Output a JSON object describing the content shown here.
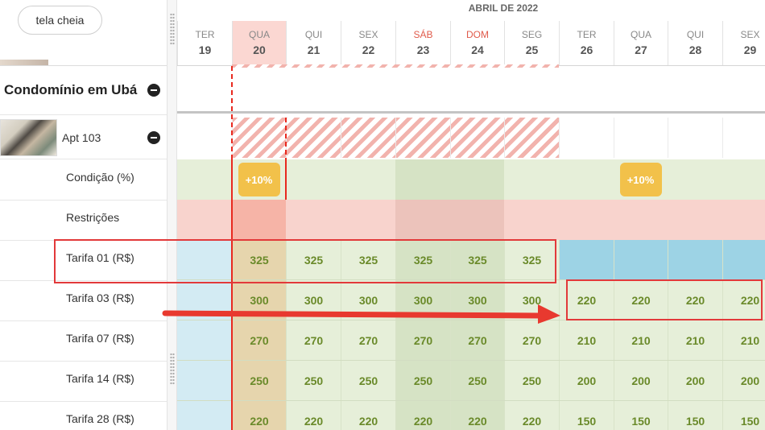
{
  "left": {
    "fullscreen_label": "tela cheia",
    "group_title": "Condomínio em Ubá",
    "apt_label": "Apt 103",
    "rows": [
      "Condição (%)",
      "Restrições",
      "Tarifa 01 (R$)",
      "Tarifa 03 (R$)",
      "Tarifa 07 (R$)",
      "Tarifa 14 (R$)",
      "Tarifa 28 (R$)"
    ]
  },
  "grid": {
    "month": "ABRIL DE 2022",
    "days": [
      {
        "dn": "TER",
        "dd": "19"
      },
      {
        "dn": "QUA",
        "dd": "20"
      },
      {
        "dn": "QUI",
        "dd": "21"
      },
      {
        "dn": "SEX",
        "dd": "22"
      },
      {
        "dn": "SÁB",
        "dd": "23"
      },
      {
        "dn": "DOM",
        "dd": "24"
      },
      {
        "dn": "SEG",
        "dd": "25"
      },
      {
        "dn": "TER",
        "dd": "26"
      },
      {
        "dn": "QUA",
        "dd": "27"
      },
      {
        "dn": "QUI",
        "dd": "28"
      },
      {
        "dn": "SEX",
        "dd": "29"
      }
    ],
    "condition_badges": [
      {
        "day_index": 1,
        "text": "+10%"
      },
      {
        "day_index": 8,
        "text": "+10%"
      }
    ],
    "tarifa01": [
      "",
      "325",
      "325",
      "325",
      "325",
      "325",
      "325",
      "",
      "",
      "",
      ""
    ],
    "tarifa03": [
      "",
      "300",
      "300",
      "300",
      "300",
      "300",
      "300",
      "220",
      "220",
      "220",
      "220"
    ],
    "tarifa07": [
      "",
      "270",
      "270",
      "270",
      "270",
      "270",
      "270",
      "210",
      "210",
      "210",
      "210"
    ],
    "tarifa14": [
      "",
      "250",
      "250",
      "250",
      "250",
      "250",
      "250",
      "200",
      "200",
      "200",
      "200"
    ],
    "tarifa28": [
      "",
      "220",
      "220",
      "220",
      "220",
      "220",
      "220",
      "150",
      "150",
      "150",
      "150"
    ]
  },
  "colors": {
    "accent_red": "#e8291f",
    "price_green": "#6a8a2a",
    "badge_yellow": "#f2c14a",
    "restriction_pink": "#f8d3cd",
    "available_green": "#e6efd9",
    "blocked_blue": "#9dd3e5"
  }
}
